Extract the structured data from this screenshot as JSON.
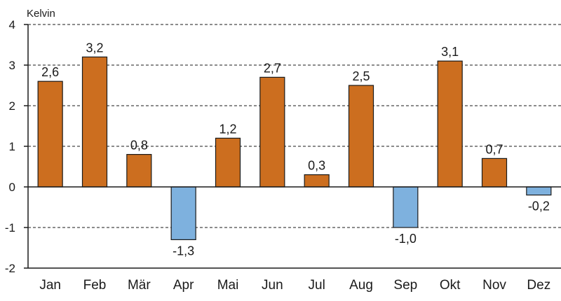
{
  "chart_data": {
    "type": "bar",
    "ylabel": "Kelvin",
    "categories": [
      "Jan",
      "Feb",
      "Mär",
      "Apr",
      "Mai",
      "Jun",
      "Jul",
      "Aug",
      "Sep",
      "Okt",
      "Nov",
      "Dez"
    ],
    "values": [
      2.6,
      3.2,
      0.8,
      -1.3,
      1.2,
      2.7,
      0.3,
      2.5,
      -1.0,
      3.1,
      0.7,
      -0.2
    ],
    "value_labels": [
      "2,6",
      "3,2",
      "0,8",
      "-1,3",
      "1,2",
      "2,7",
      "0,3",
      "2,5",
      "-1,0",
      "3,1",
      "0,7",
      "-0,2"
    ],
    "yticks": [
      -2,
      -1,
      0,
      1,
      2,
      3,
      4
    ],
    "ytick_labels": [
      "-2",
      "-1",
      "0",
      "1",
      "2",
      "3",
      "4"
    ],
    "ylim": [
      -2,
      4
    ],
    "grid": "horizontal dashed",
    "colors": {
      "positive": "#CC6E1F",
      "negative": "#7EB1DE",
      "outline": "#1a1a1a",
      "grid": "#1a1a1a"
    }
  }
}
